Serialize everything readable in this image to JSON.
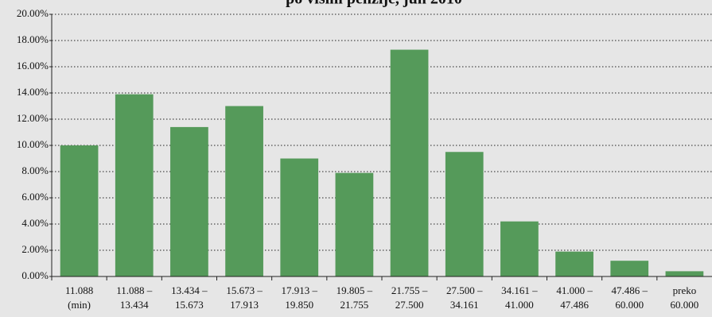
{
  "chart_data": {
    "type": "bar",
    "title": "po visini penzije, jun 2010",
    "categories": [
      [
        "11.088",
        "(min)"
      ],
      [
        "11.088 –",
        "13.434"
      ],
      [
        "13.434 –",
        "15.673"
      ],
      [
        "15.673 –",
        "17.913"
      ],
      [
        "17.913 –",
        "19.850"
      ],
      [
        "19.805 –",
        "21.755"
      ],
      [
        "21.755 –",
        "27.500"
      ],
      [
        "27.500 –",
        "34.161"
      ],
      [
        "34.161 –",
        "41.000"
      ],
      [
        "41.000 –",
        "47.486"
      ],
      [
        "47.486 –",
        "60.000"
      ],
      [
        "preko",
        "60.000"
      ]
    ],
    "values": [
      10.0,
      13.9,
      11.4,
      13.0,
      9.0,
      7.9,
      17.3,
      9.5,
      4.2,
      1.9,
      1.2,
      0.4
    ],
    "color": "#559a5a",
    "ylim": [
      0,
      20
    ],
    "yticks": [
      {
        "value": 0,
        "label": "0.00%"
      },
      {
        "value": 2,
        "label": "2.00%"
      },
      {
        "value": 4,
        "label": "4.00%"
      },
      {
        "value": 6,
        "label": "6.00%"
      },
      {
        "value": 8,
        "label": "8.00%"
      },
      {
        "value": 10,
        "label": "10.00%"
      },
      {
        "value": 12,
        "label": "12.00%"
      },
      {
        "value": 14,
        "label": "14.00%"
      },
      {
        "value": 16,
        "label": "16.00%"
      },
      {
        "value": 18,
        "label": "18.00%"
      },
      {
        "value": 20,
        "label": "20.00%"
      }
    ],
    "grid": true
  }
}
